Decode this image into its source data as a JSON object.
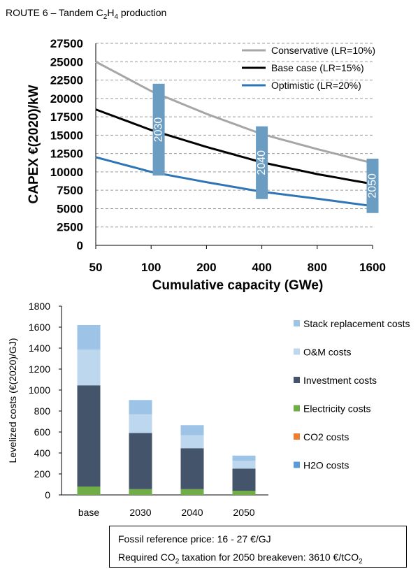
{
  "page": {
    "title_prefix": "ROUTE 6 – Tandem C",
    "title_sub1": "2",
    "title_mid": "H",
    "title_sub2": "4",
    "title_suffix": " production"
  },
  "chart_data": [
    {
      "type": "line",
      "xscale": "log2",
      "x": [
        50,
        100,
        200,
        400,
        800,
        1600
      ],
      "xticks": [
        "50",
        "100",
        "200",
        "400",
        "800",
        "1600"
      ],
      "xlabel": "Cumulative capacity (GWe)",
      "ylabel": "CAPEX €(2020)/kW",
      "ylim": [
        0,
        27500
      ],
      "yticks": [
        0,
        2500,
        5000,
        7500,
        10000,
        12500,
        15000,
        17500,
        20000,
        22500,
        25000,
        27500
      ],
      "grid": true,
      "legend_position": "top-right",
      "series": [
        {
          "name": "Conservative (LR=10%)",
          "color": "#a6a6a6",
          "values": [
            25000,
            21000,
            17900,
            15150,
            13100,
            11200
          ]
        },
        {
          "name": "Base case (LR=15%)",
          "color": "#000000",
          "values": [
            18500,
            15700,
            13400,
            11300,
            9700,
            8350
          ]
        },
        {
          "name": "Optimistic (LR=20%)",
          "color": "#2e75b6",
          "values": [
            12000,
            10000,
            8600,
            7300,
            6350,
            5350
          ]
        }
      ],
      "ranges": [
        {
          "label": "2030",
          "x": 110,
          "ymin": 9500,
          "ymax": 22000,
          "color": "#6b9dc3"
        },
        {
          "label": "2040",
          "x": 400,
          "ymin": 6300,
          "ymax": 16200,
          "color": "#6b9dc3"
        },
        {
          "label": "2050",
          "x": 1600,
          "ymin": 4400,
          "ymax": 11800,
          "color": "#6b9dc3"
        }
      ]
    },
    {
      "type": "bar",
      "stacked": true,
      "categories": [
        "base",
        "2030",
        "2040",
        "2050"
      ],
      "ylabel": "Levelized costs (€(2020)/GJ)",
      "ylim": [
        0,
        1800
      ],
      "yticks": [
        0,
        200,
        400,
        600,
        800,
        1000,
        1200,
        1400,
        1600,
        1800
      ],
      "legend_position": "right",
      "series": [
        {
          "name": "H2O costs",
          "color": "#5b9bd5",
          "values": [
            0,
            0,
            0,
            0
          ]
        },
        {
          "name": "CO2 costs",
          "color": "#ed7d31",
          "values": [
            0,
            0,
            0,
            0
          ]
        },
        {
          "name": "Electricity costs",
          "color": "#70ad47",
          "values": [
            80,
            55,
            55,
            40
          ]
        },
        {
          "name": "Investment costs",
          "color": "#44546a",
          "values": [
            965,
            535,
            390,
            210
          ]
        },
        {
          "name": "O&M costs",
          "color": "#bdd7ee",
          "values": [
            340,
            180,
            125,
            75
          ]
        },
        {
          "name": "Stack replacement costs",
          "color": "#9dc3e6",
          "values": [
            235,
            135,
            95,
            50
          ]
        }
      ]
    }
  ],
  "info": {
    "line1": "Fossil reference price: 16 - 27 €/GJ",
    "line2_prefix": "Required CO",
    "line2_sub": "2",
    "line2_mid": " taxation for 2050 breakeven: 3610 €/tCO",
    "line2_sub2": "2"
  }
}
